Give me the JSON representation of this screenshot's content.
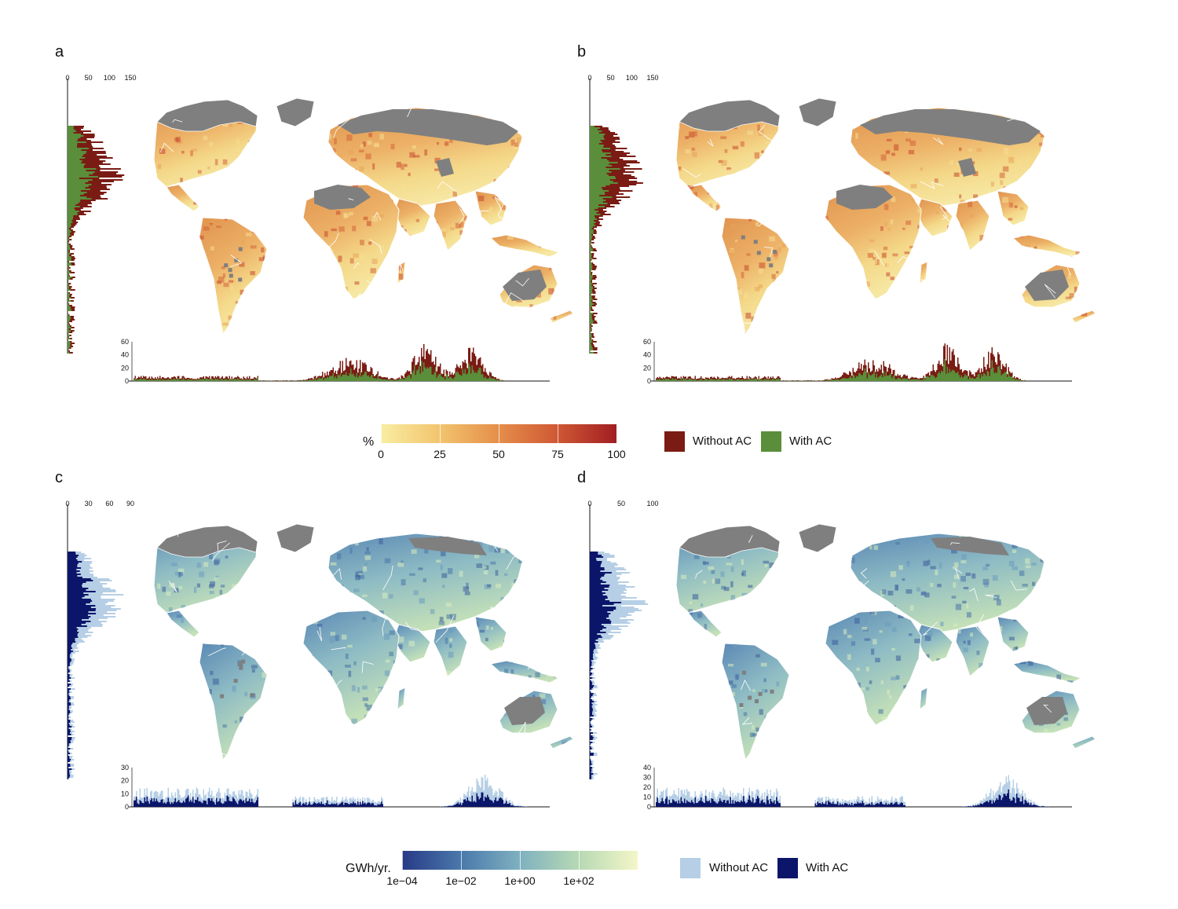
{
  "panels": [
    {
      "letter": "a",
      "theme": "pct",
      "side_ticks": [
        "0",
        "50",
        "100",
        "150"
      ],
      "bottom_ticks": [
        "0",
        "20",
        "40",
        "60"
      ],
      "side_max": 150,
      "bottom_max": 60
    },
    {
      "letter": "b",
      "theme": "pct",
      "side_ticks": [
        "0",
        "50",
        "100",
        "150"
      ],
      "bottom_ticks": [
        "0",
        "20",
        "40",
        "60"
      ],
      "side_max": 150,
      "bottom_max": 60
    },
    {
      "letter": "c",
      "theme": "energy",
      "side_ticks": [
        "0",
        "30",
        "60",
        "90"
      ],
      "bottom_ticks": [
        "0",
        "10",
        "20",
        "30"
      ],
      "side_max": 90,
      "bottom_max": 30
    },
    {
      "letter": "d",
      "theme": "energy",
      "side_ticks": [
        "0",
        "50",
        "100"
      ],
      "bottom_ticks": [
        "0",
        "10",
        "20",
        "30",
        "40"
      ],
      "side_max": 100,
      "bottom_max": 40
    }
  ],
  "legend_top": {
    "title": "%",
    "ticks": [
      "0",
      "25",
      "50",
      "75",
      "100"
    ],
    "colors": [
      "#f9eda2",
      "#f2c46e",
      "#e58e4a",
      "#cf5834",
      "#a11e22"
    ],
    "swatches": [
      {
        "label": "Without AC",
        "color": "#7a1c14"
      },
      {
        "label": "With AC",
        "color": "#5a8e3a"
      }
    ]
  },
  "legend_bottom": {
    "title": "GWh/yr.",
    "ticks": [
      "1e−04",
      "1e−02",
      "1e+00",
      "1e+02"
    ],
    "colors": [
      "#283a86",
      "#4a79ab",
      "#7fb1c0",
      "#b7d9b4",
      "#f4f6c8"
    ],
    "swatches": [
      {
        "label": "Without AC",
        "color": "#b6cfe6"
      },
      {
        "label": "With AC",
        "color": "#0b1569"
      }
    ]
  },
  "palette": {
    "land_grey": "#7f7f7f",
    "border": "#ffffff"
  }
}
